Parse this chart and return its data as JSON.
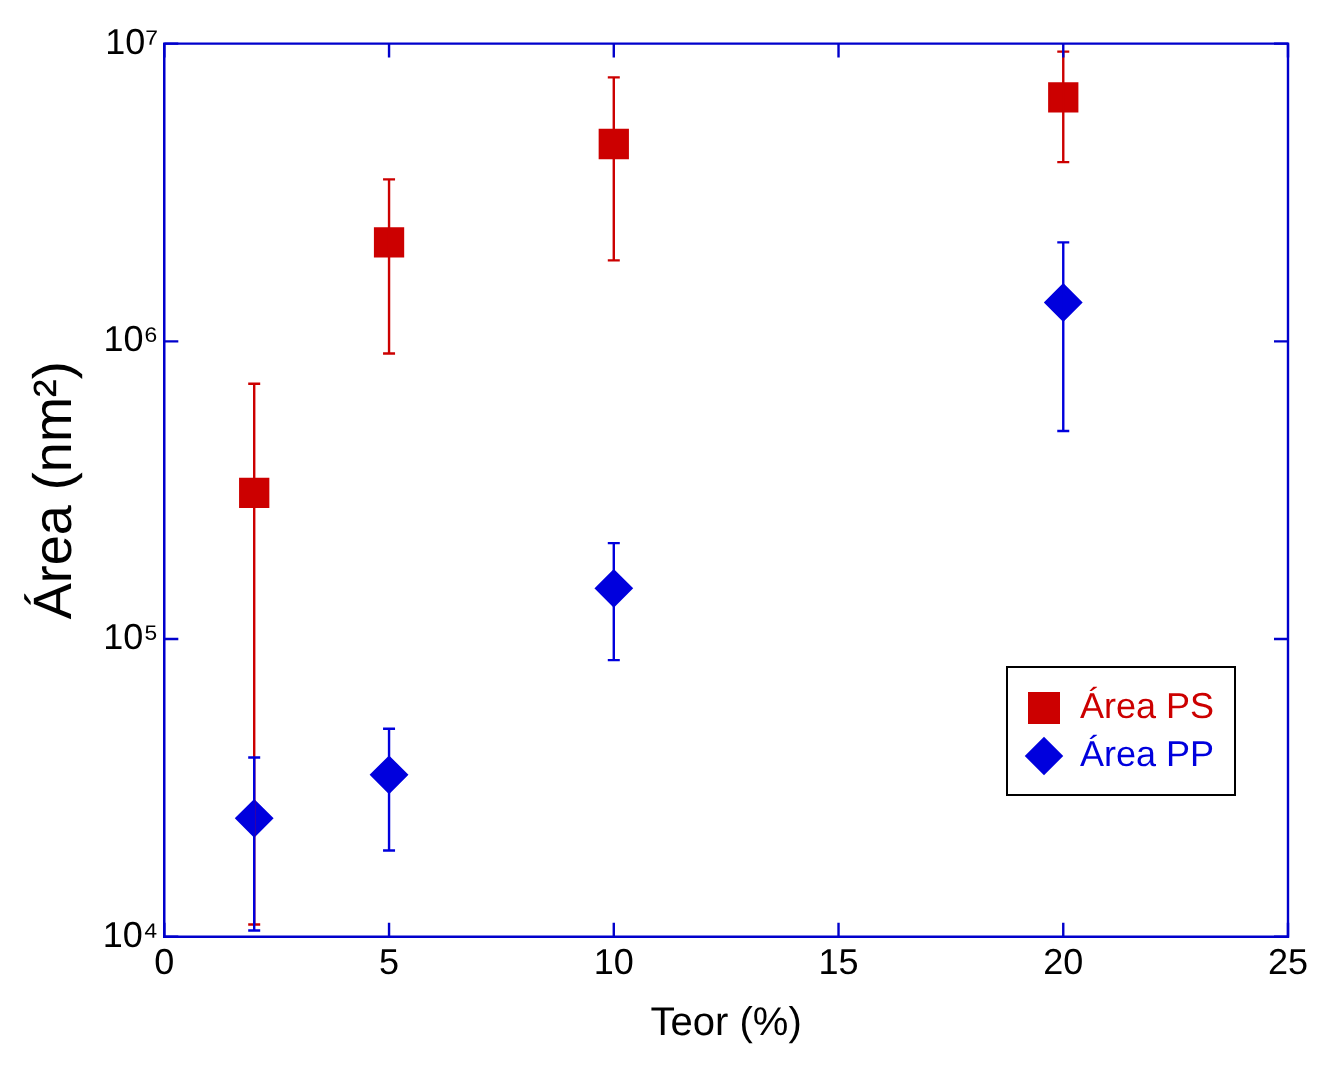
{
  "chart_data": {
    "type": "scatter",
    "xlabel": "Teor (%)",
    "ylabel": "Área (nm²)",
    "log": "y",
    "xlim": [
      0,
      25
    ],
    "xticks": [
      0,
      5,
      10,
      15,
      20,
      25
    ],
    "ylim": [
      10000,
      10000000
    ],
    "yticks": [
      {
        "value": 10000,
        "label": "10⁴"
      },
      {
        "value": 100000,
        "label": "10⁵"
      },
      {
        "value": 1000000,
        "label": "10⁶"
      },
      {
        "value": 10000000,
        "label": "10⁷"
      }
    ],
    "grid": false,
    "legend": "bottom right",
    "series": [
      {
        "name": "Área PS",
        "color": "#cc0000",
        "marker": "square",
        "x": [
          2,
          5,
          10,
          20
        ],
        "values": [
          310000,
          2150000,
          4600000,
          6600000
        ],
        "errors": [
          [
            11000,
            720000
          ],
          [
            910000,
            3500000
          ],
          [
            1870000,
            7700000
          ],
          [
            4000000,
            9400000
          ]
        ]
      },
      {
        "name": "Área PP",
        "color": "#0000dd",
        "marker": "diamond",
        "x": [
          2,
          5,
          10,
          20
        ],
        "values": [
          25000,
          35000,
          148000,
          1350000
        ],
        "errors": [
          [
            10500,
            40000
          ],
          [
            19500,
            50000
          ],
          [
            85000,
            210000
          ],
          [
            500000,
            2150000
          ]
        ]
      }
    ]
  }
}
